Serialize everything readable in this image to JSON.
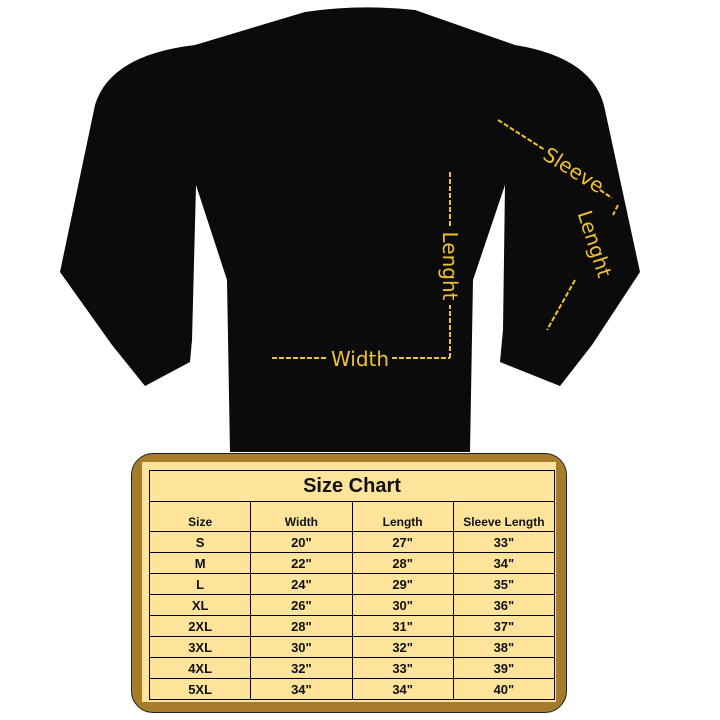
{
  "annotations": {
    "width": "Width",
    "length": "Lenght",
    "sleeve": "Sleeve",
    "sleeve_length": "Lenght",
    "color": "#f2c12e"
  },
  "garment_color": "#0b0b0b",
  "size_chart": {
    "title": "Size Chart",
    "headers": [
      "Size",
      "Width",
      "Length",
      "Sleeve Length"
    ],
    "rows": [
      [
        "S",
        "20\"",
        "27\"",
        "33\""
      ],
      [
        "M",
        "22\"",
        "28\"",
        "34\""
      ],
      [
        "L",
        "24\"",
        "29\"",
        "35\""
      ],
      [
        "XL",
        "26\"",
        "30\"",
        "36\""
      ],
      [
        "2XL",
        "28\"",
        "31\"",
        "37\""
      ],
      [
        "3XL",
        "30\"",
        "32\"",
        "38\""
      ],
      [
        "4XL",
        "32\"",
        "33\"",
        "39\""
      ],
      [
        "5XL",
        "34\"",
        "34\"",
        "40\""
      ]
    ],
    "frame_color": "#a67c2a",
    "fill_color": "#fde49a"
  }
}
